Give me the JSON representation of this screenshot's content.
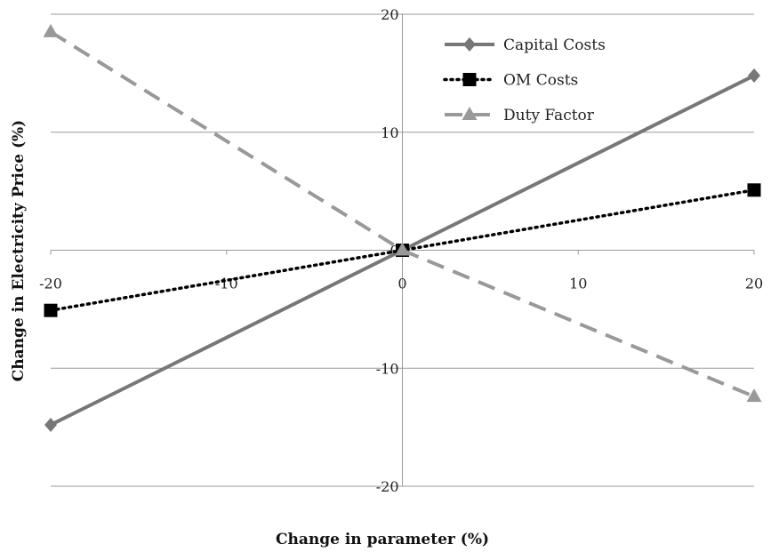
{
  "chart_data": {
    "type": "line",
    "title": "",
    "xlabel": "Change in parameter (%)",
    "ylabel": "Change in Electricity Price (%)",
    "xlim": [
      -20,
      20
    ],
    "ylim": [
      -20,
      20
    ],
    "x_ticks": [
      "-20",
      "-10",
      "0",
      "10",
      "20"
    ],
    "y_ticks": [
      "20",
      "10",
      "0",
      "-10",
      "-20"
    ],
    "grid": "horizontal",
    "legend_position": "top-right",
    "x": [
      -20,
      0,
      20
    ],
    "series": [
      {
        "name": "Capital Costs",
        "values": [
          -14.8,
          0,
          14.8
        ],
        "color": "#777777",
        "line": "solid",
        "marker": "diamond"
      },
      {
        "name": "OM Costs",
        "values": [
          -5.1,
          0,
          5.1
        ],
        "color": "#000000",
        "line": "dotted",
        "marker": "square"
      },
      {
        "name": "Duty Factor",
        "values": [
          18.5,
          0,
          -12.4
        ],
        "color": "#999999",
        "line": "dashed",
        "marker": "triangle"
      }
    ]
  }
}
